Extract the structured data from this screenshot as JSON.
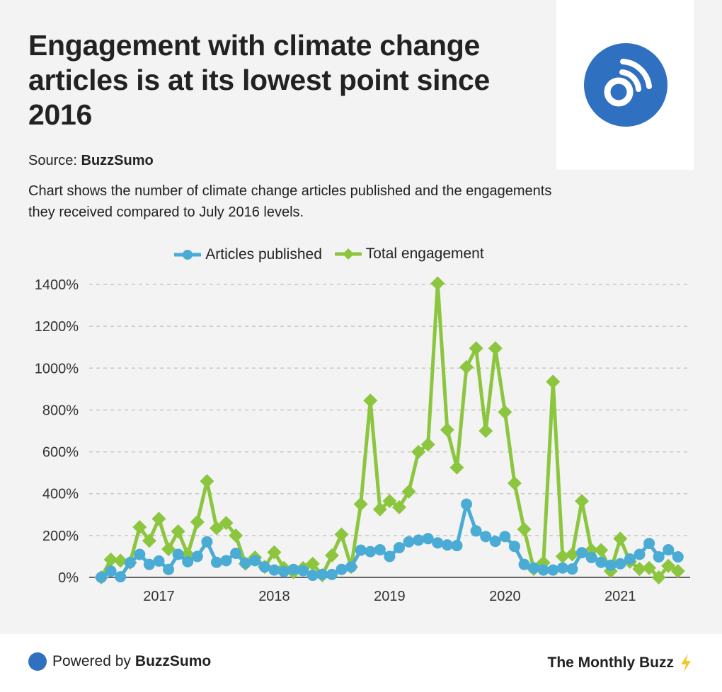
{
  "header": {
    "title": "Engagement with climate change articles is at its lowest point since 2016",
    "source_label": "Source:",
    "source_name": "BuzzSumo",
    "description": "Chart shows the number of climate change articles published and the engagements they received compared to July 2016 levels."
  },
  "logo": {
    "icon": "podcast-broadcast-icon",
    "color": "#3070c0"
  },
  "footer": {
    "powered_label": "Powered by",
    "powered_brand": "BuzzSumo",
    "newsletter": "The Monthly Buzz",
    "newsletter_icon": "lightning-icon",
    "brand_color": "#3070c0",
    "lightning_color": "#f7c52b"
  },
  "chart_data": {
    "type": "line",
    "title": "",
    "xlabel": "",
    "ylabel": "",
    "ylim": [
      0,
      1400
    ],
    "yticks": [
      0,
      200,
      400,
      600,
      800,
      1000,
      1200,
      1400
    ],
    "ytick_labels": [
      "0%",
      "200%",
      "400%",
      "600%",
      "800%",
      "1000%",
      "1200%",
      "1400%"
    ],
    "y_format": "percent",
    "grid": true,
    "legend_position": "top",
    "x_start": "2016-07",
    "x_end": "2021-07",
    "xticks": [
      {
        "label": "2017",
        "month_index": 6
      },
      {
        "label": "2018",
        "month_index": 18
      },
      {
        "label": "2019",
        "month_index": 30
      },
      {
        "label": "2020",
        "month_index": 42
      },
      {
        "label": "2021",
        "month_index": 54
      }
    ],
    "series": [
      {
        "name": "Articles published",
        "color": "#4aabd4",
        "marker": "circle",
        "values": [
          0,
          30,
          3,
          70,
          110,
          62,
          78,
          38,
          110,
          75,
          100,
          170,
          72,
          80,
          115,
          68,
          80,
          50,
          35,
          28,
          38,
          32,
          10,
          14,
          14,
          38,
          50,
          130,
          123,
          132,
          100,
          142,
          170,
          178,
          185,
          165,
          155,
          152,
          350,
          222,
          195,
          172,
          195,
          148,
          62,
          45,
          35,
          35,
          45,
          40,
          118,
          95,
          72,
          58,
          65,
          88,
          110,
          162,
          98,
          132,
          98
        ]
      },
      {
        "name": "Total engagement",
        "color": "#8cc63f",
        "marker": "diamond",
        "values": [
          0,
          85,
          80,
          70,
          240,
          175,
          280,
          135,
          220,
          110,
          265,
          460,
          235,
          260,
          200,
          65,
          95,
          50,
          120,
          45,
          25,
          45,
          65,
          10,
          105,
          205,
          50,
          350,
          845,
          325,
          365,
          335,
          410,
          600,
          635,
          1405,
          705,
          525,
          1005,
          1095,
          700,
          1095,
          790,
          450,
          230,
          40,
          70,
          935,
          100,
          110,
          365,
          130,
          130,
          30,
          185,
          75,
          40,
          45,
          0,
          55,
          30
        ]
      }
    ]
  }
}
